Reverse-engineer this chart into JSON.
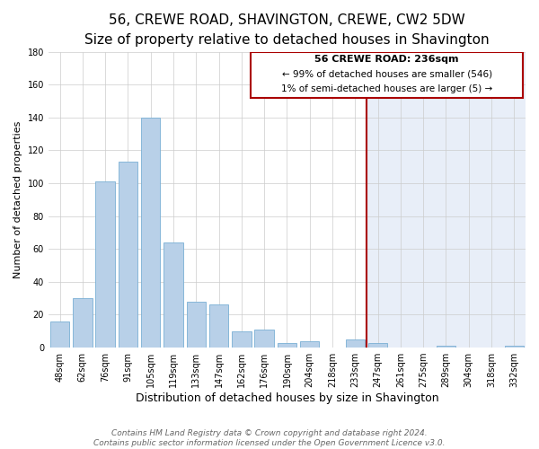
{
  "title": "56, CREWE ROAD, SHAVINGTON, CREWE, CW2 5DW",
  "subtitle": "Size of property relative to detached houses in Shavington",
  "xlabel": "Distribution of detached houses by size in Shavington",
  "ylabel": "Number of detached properties",
  "bar_labels": [
    "48sqm",
    "62sqm",
    "76sqm",
    "91sqm",
    "105sqm",
    "119sqm",
    "133sqm",
    "147sqm",
    "162sqm",
    "176sqm",
    "190sqm",
    "204sqm",
    "218sqm",
    "233sqm",
    "247sqm",
    "261sqm",
    "275sqm",
    "289sqm",
    "304sqm",
    "318sqm",
    "332sqm"
  ],
  "bar_values": [
    16,
    30,
    101,
    113,
    140,
    64,
    28,
    26,
    10,
    11,
    3,
    4,
    0,
    5,
    3,
    0,
    0,
    1,
    0,
    0,
    1
  ],
  "bar_color": "#b8d0e8",
  "bar_edge_color": "#7aafd4",
  "ylim": [
    0,
    180
  ],
  "yticks": [
    0,
    20,
    40,
    60,
    80,
    100,
    120,
    140,
    160,
    180
  ],
  "vline_x_index": 13,
  "vline_color": "#aa0000",
  "annotation_title": "56 CREWE ROAD: 236sqm",
  "annotation_line1": "← 99% of detached houses are smaller (546)",
  "annotation_line2": "1% of semi-detached houses are larger (5) →",
  "annotation_box_edgecolor": "#aa0000",
  "annotation_box_facecolor": "#ffffff",
  "bg_left_color": "#ffffff",
  "bg_right_color": "#e8eef8",
  "footer_line1": "Contains HM Land Registry data © Crown copyright and database right 2024.",
  "footer_line2": "Contains public sector information licensed under the Open Government Licence v3.0.",
  "title_fontsize": 11,
  "subtitle_fontsize": 9.5,
  "xlabel_fontsize": 9,
  "ylabel_fontsize": 8,
  "tick_fontsize": 7,
  "footer_fontsize": 6.5,
  "grid_color": "#cccccc",
  "fig_bg_color": "#ffffff"
}
